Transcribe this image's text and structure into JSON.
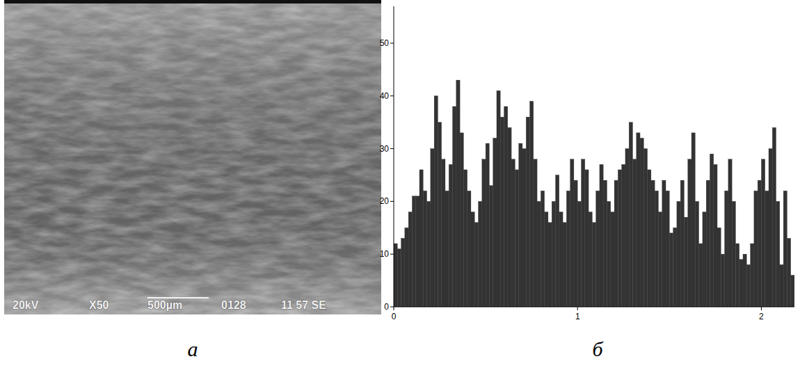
{
  "captions": [
    "а",
    "б"
  ],
  "micrograph": {
    "info": [
      "20kV",
      "X50",
      "500µm",
      "0128",
      "11 57 SE"
    ]
  },
  "chart_data": {
    "type": "histogram",
    "color": "#333333",
    "bins": [
      0,
      0.02,
      0.04,
      0.06,
      0.08,
      0.1,
      0.12,
      0.14,
      0.16,
      0.18,
      0.2,
      0.22,
      0.24,
      0.26,
      0.28,
      0.3,
      0.32,
      0.34,
      0.36,
      0.38,
      0.4,
      0.42,
      0.44,
      0.46,
      0.48,
      0.5,
      0.52,
      0.54,
      0.56,
      0.58,
      0.6,
      0.62,
      0.64,
      0.66,
      0.68,
      0.7,
      0.72,
      0.74,
      0.76,
      0.78,
      0.8,
      0.82,
      0.84,
      0.86,
      0.88,
      0.9,
      0.92,
      0.94,
      0.96,
      0.98,
      1,
      1.02,
      1.04,
      1.06,
      1.08,
      1.1,
      1.12,
      1.14,
      1.16,
      1.18,
      1.2,
      1.22,
      1.24,
      1.26,
      1.28,
      1.3,
      1.32,
      1.34,
      1.36,
      1.38,
      1.4,
      1.42,
      1.44,
      1.46,
      1.48,
      1.5,
      1.52,
      1.54,
      1.56,
      1.58,
      1.6,
      1.62,
      1.64,
      1.66,
      1.68,
      1.7,
      1.72,
      1.74,
      1.76,
      1.78,
      1.8,
      1.82,
      1.84,
      1.86,
      1.88,
      1.9,
      1.92,
      1.94,
      1.96,
      1.98,
      2,
      2.02,
      2.04,
      2.06,
      2.08,
      2.1,
      2.12,
      2.14,
      2.16,
      2.18
    ],
    "values": [
      12,
      11,
      13,
      15,
      18,
      21,
      21,
      26,
      22,
      20,
      30,
      40,
      35,
      28,
      22,
      27,
      38,
      43,
      33,
      26,
      22,
      18,
      16,
      20,
      28,
      31,
      23,
      32,
      41,
      36,
      38,
      34,
      28,
      26,
      31,
      30,
      36,
      39,
      28,
      20,
      22,
      18,
      16,
      20,
      25,
      18,
      16,
      22,
      28,
      24,
      20,
      28,
      26,
      18,
      16,
      22,
      27,
      24,
      20,
      18,
      24,
      26,
      27,
      30,
      35,
      28,
      33,
      32,
      30,
      26,
      24,
      22,
      18,
      24,
      22,
      14,
      15,
      20,
      24,
      17,
      28,
      33,
      20,
      12,
      18,
      24,
      29,
      27,
      15,
      10,
      22,
      28,
      20,
      12,
      9,
      10,
      8,
      12,
      22,
      24,
      28,
      22,
      30,
      34,
      20,
      8,
      22,
      13,
      6
    ],
    "xlim": [
      0,
      2.18
    ],
    "xticks": [
      0,
      1,
      2
    ],
    "ylim": [
      0,
      57
    ],
    "yticks": [
      0,
      10,
      20,
      30,
      40,
      50
    ],
    "grid": false
  }
}
